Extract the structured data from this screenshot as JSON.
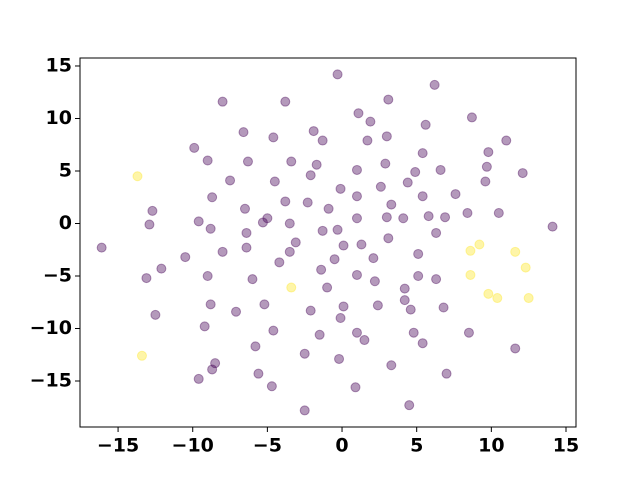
{
  "chart_data": {
    "type": "scatter",
    "xlim": [
      -17.55,
      15.67
    ],
    "ylim": [
      -19.38,
      15.76
    ],
    "xticks": [
      {
        "value": -15,
        "label": "−15"
      },
      {
        "value": -10,
        "label": "−10"
      },
      {
        "value": -5,
        "label": "−5"
      },
      0,
      5,
      10,
      15
    ],
    "yticks": [
      {
        "value": -15,
        "label": "−15"
      },
      {
        "value": -10,
        "label": "−10"
      },
      {
        "value": -5,
        "label": "−5"
      },
      0,
      5,
      10,
      15
    ],
    "series": [
      {
        "color": "#440154",
        "x": [
          -16.1,
          -0.3,
          6.2,
          -8.0,
          -3.8,
          1.1,
          3.1,
          1.9,
          8.7,
          5.6,
          -6.6,
          -1.9,
          -4.6,
          3.0,
          -1.3,
          1.7,
          11.0,
          -9.9,
          9.8,
          5.4,
          -9.0,
          -6.3,
          -3.4,
          -1.7,
          2.9,
          9.7,
          6.6,
          1.0,
          4.9,
          -2.1,
          12.1,
          -7.5,
          -4.5,
          4.4,
          9.6,
          2.6,
          -0.1,
          7.6,
          5.4,
          1.0,
          -8.7,
          -3.8,
          -2.3,
          3.3,
          -0.9,
          -6.5,
          -12.7,
          8.4,
          10.5,
          5.8,
          6.9,
          3.0,
          4.1,
          1.0,
          -5.0,
          -5.3,
          -9.6,
          -3.5,
          -12.9,
          14.1,
          -8.8,
          -1.3,
          -0.3,
          -6.4,
          6.3,
          3.1,
          -3.1,
          1.3,
          0.1,
          -6.4,
          -8.0,
          -3.5,
          5.1,
          -10.5,
          -0.5,
          2.1,
          -4.2,
          -12.1,
          -1.4,
          -9.0,
          1.0,
          5.1,
          -13.1,
          -6.0,
          2.2,
          6.3,
          -1.0,
          4.2,
          4.2,
          -8.8,
          -5.2,
          2.4,
          0.1,
          6.8,
          -7.1,
          -2.1,
          4.6,
          -12.5,
          -0.1,
          -9.2,
          -4.6,
          -1.5,
          1.0,
          4.8,
          8.5,
          1.5,
          5.4,
          -5.8,
          11.6,
          -2.5,
          -0.2,
          -8.5,
          -8.7,
          3.3,
          -5.6,
          7.0,
          -9.6,
          -4.7,
          0.9,
          4.5,
          -2.5
        ],
        "y": [
          -2.3,
          14.2,
          13.2,
          11.6,
          11.6,
          10.5,
          11.8,
          9.7,
          10.1,
          9.4,
          8.7,
          8.8,
          8.2,
          8.3,
          7.9,
          7.9,
          7.9,
          7.2,
          6.8,
          6.7,
          6.0,
          5.9,
          5.9,
          5.6,
          5.7,
          5.4,
          5.1,
          5.1,
          4.9,
          4.6,
          4.8,
          4.1,
          4.0,
          3.9,
          4.0,
          3.5,
          3.3,
          2.8,
          2.6,
          2.6,
          2.5,
          2.1,
          2.0,
          1.8,
          1.4,
          1.4,
          1.2,
          1.0,
          1.0,
          0.7,
          0.6,
          0.6,
          0.5,
          0.5,
          0.5,
          0.1,
          0.2,
          0.0,
          -0.1,
          -0.3,
          -0.5,
          -0.7,
          -0.6,
          -0.9,
          -0.9,
          -1.4,
          -1.8,
          -2.0,
          -2.1,
          -2.3,
          -2.7,
          -2.7,
          -2.9,
          -3.2,
          -3.4,
          -3.3,
          -3.7,
          -4.3,
          -4.4,
          -5.0,
          -4.9,
          -5.0,
          -5.2,
          -5.3,
          -5.5,
          -5.3,
          -6.1,
          -6.2,
          -7.3,
          -7.7,
          -7.7,
          -7.8,
          -7.9,
          -8.0,
          -8.4,
          -8.3,
          -8.2,
          -8.7,
          -9.0,
          -9.8,
          -10.2,
          -10.6,
          -10.4,
          -10.4,
          -10.4,
          -11.1,
          -11.4,
          -11.7,
          -11.9,
          -12.4,
          -12.9,
          -13.3,
          -13.9,
          -13.5,
          -14.3,
          -14.3,
          -14.8,
          -15.5,
          -15.6,
          -17.3,
          -17.8
        ]
      },
      {
        "color": "#fde725",
        "x": [
          -13.7,
          -13.4,
          -3.4,
          9.2,
          8.6,
          11.6,
          12.3,
          8.6,
          9.8,
          10.4,
          12.5
        ],
        "y": [
          4.5,
          -12.6,
          -6.1,
          -2.0,
          -2.6,
          -2.7,
          -4.2,
          -4.9,
          -6.7,
          -7.1,
          -7.1
        ]
      }
    ]
  }
}
